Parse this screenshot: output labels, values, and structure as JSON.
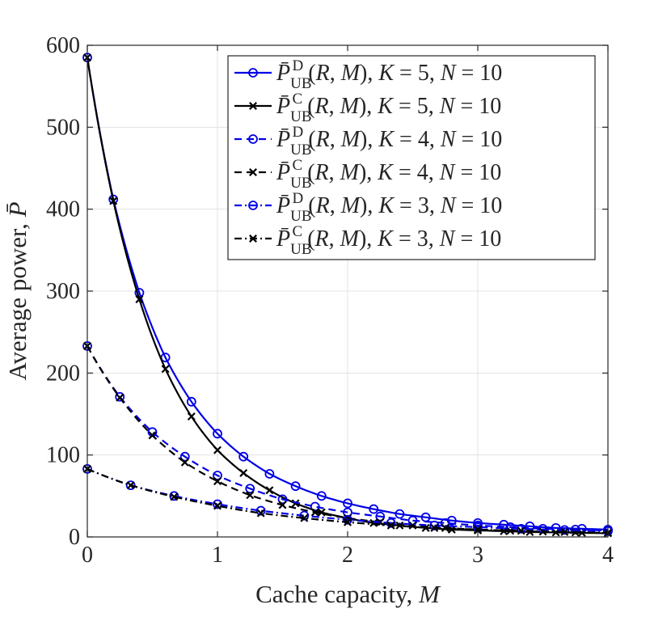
{
  "chart_data": {
    "type": "line",
    "xlabel": "Cache capacity, ",
    "xlabel_var": "M",
    "ylabel": "Average power, ",
    "ylabel_var": "P̄",
    "xlim": [
      0,
      4
    ],
    "ylim": [
      0,
      600
    ],
    "xticks": [
      0,
      1,
      2,
      3,
      4
    ],
    "xtick_labels": [
      "0",
      "1",
      "2",
      "3",
      "4"
    ],
    "yticks": [
      0,
      100,
      200,
      300,
      400,
      500,
      600
    ],
    "ytick_labels": [
      "0",
      "100",
      "200",
      "300",
      "400",
      "500",
      "600"
    ],
    "grid": true,
    "legend_position": "top-right",
    "series": [
      {
        "name": "P̄UB^D(R, M), K = 5, N = 10",
        "symbol": "D",
        "K": "5",
        "N": "10",
        "color": "#0000e6",
        "dash": "solid",
        "marker": "circle",
        "x": [
          0,
          0.2,
          0.4,
          0.6,
          0.8,
          1.0,
          1.2,
          1.4,
          1.6,
          1.8,
          2.0,
          2.2,
          2.4,
          2.6,
          2.8,
          3.0,
          3.2,
          3.4,
          3.6,
          3.8,
          4.0
        ],
        "y": [
          585,
          412,
          298,
          219,
          165,
          126,
          98,
          77,
          62,
          50,
          41,
          34,
          28,
          24,
          20,
          17,
          15,
          13,
          11,
          10,
          9
        ]
      },
      {
        "name": "P̄UB^C(R, M), K = 5, N = 10",
        "symbol": "C",
        "K": "5",
        "N": "10",
        "color": "#000000",
        "dash": "solid",
        "marker": "x",
        "x": [
          0,
          0.2,
          0.4,
          0.6,
          0.8,
          1.0,
          1.2,
          1.4,
          1.6,
          1.8,
          2.0,
          2.2,
          2.4,
          2.6,
          2.8,
          3.0,
          3.2,
          3.4,
          3.6,
          3.8,
          4.0
        ],
        "y": [
          585,
          410,
          290,
          205,
          147,
          106,
          78,
          57,
          41,
          30,
          23,
          17,
          14,
          11,
          9,
          8,
          7,
          6,
          5.5,
          5,
          4.5
        ]
      },
      {
        "name": "P̄UB^D(R, M), K = 4, N = 10",
        "symbol": "D",
        "K": "4",
        "N": "10",
        "color": "#0000e6",
        "dash": "dashed",
        "marker": "circle",
        "x": [
          0,
          0.25,
          0.5,
          0.75,
          1.0,
          1.25,
          1.5,
          1.75,
          2.0,
          2.25,
          2.5,
          2.75,
          3.0,
          3.25,
          3.5,
          3.75,
          4.0
        ],
        "y": [
          233,
          171,
          128,
          98,
          75,
          59,
          46,
          37,
          30,
          25,
          20,
          17,
          14,
          12,
          10,
          9,
          8
        ]
      },
      {
        "name": "P̄UB^C(R, M), K = 4, N = 10",
        "symbol": "C",
        "K": "4",
        "N": "10",
        "color": "#000000",
        "dash": "dashed",
        "marker": "x",
        "x": [
          0,
          0.25,
          0.5,
          0.75,
          1.0,
          1.25,
          1.5,
          1.75,
          2.0,
          2.25,
          2.5,
          2.75,
          3.0,
          3.25,
          3.5,
          3.75,
          4.0
        ],
        "y": [
          233,
          170,
          124,
          91,
          68,
          51,
          39,
          30,
          23,
          18,
          14,
          11,
          9,
          7.5,
          6.5,
          5.5,
          5
        ]
      },
      {
        "name": "P̄UB^D(R, M), K = 3, N = 10",
        "symbol": "D",
        "K": "3",
        "N": "10",
        "color": "#0000e6",
        "dash": "dashdot",
        "marker": "circle",
        "x": [
          0,
          0.3333,
          0.6667,
          1.0,
          1.3333,
          1.6667,
          2.0,
          2.3333,
          2.6667,
          3.0,
          3.3333,
          3.6667,
          4.0
        ],
        "y": [
          83,
          63,
          50,
          40,
          32,
          26,
          21,
          17,
          14,
          12,
          10,
          8.5,
          7
        ]
      },
      {
        "name": "P̄UB^C(R, M), K = 3, N = 10",
        "symbol": "C",
        "K": "3",
        "N": "10",
        "color": "#000000",
        "dash": "dashdot",
        "marker": "x",
        "x": [
          0,
          0.3333,
          0.6667,
          1.0,
          1.3333,
          1.6667,
          2.0,
          2.3333,
          2.6667,
          3.0,
          3.3333,
          3.6667,
          4.0
        ],
        "y": [
          83,
          63,
          49,
          38,
          29,
          23,
          18,
          14,
          11,
          9,
          7.5,
          6,
          5
        ]
      }
    ]
  }
}
